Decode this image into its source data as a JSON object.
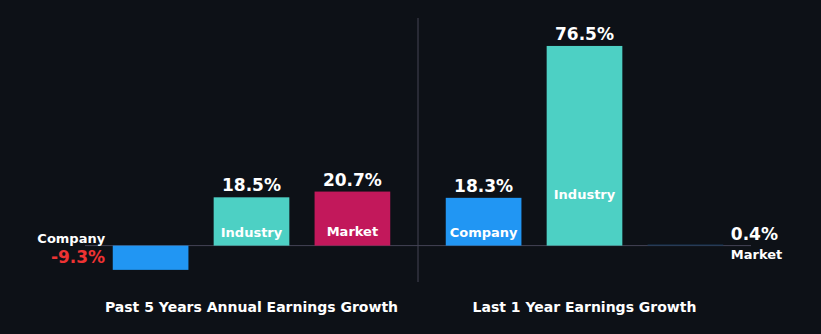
{
  "chart_data": [
    {
      "type": "bar",
      "title": "Past 5 Years Annual Earnings Growth",
      "categories": [
        "Company",
        "Industry",
        "Market"
      ],
      "values": [
        -9.3,
        18.5,
        20.7
      ],
      "value_labels": [
        "-9.3%",
        "18.5%",
        "20.7%"
      ],
      "colors": [
        "#2196f3",
        "#4dd0c4",
        "#c2185b"
      ],
      "ylim": [
        -13.95,
        87.21
      ],
      "data_labels": true,
      "tick_labels": false,
      "grid": false
    },
    {
      "type": "bar",
      "title": "Last 1 Year Earnings Growth",
      "categories": [
        "Company",
        "Industry",
        "Market"
      ],
      "values": [
        18.3,
        76.5,
        0.4
      ],
      "value_labels": [
        "18.3%",
        "76.5%",
        "0.4%"
      ],
      "colors": [
        "#2196f3",
        "#4dd0c4",
        "#1a3a5c"
      ],
      "ylim": [
        -13.95,
        87.21
      ],
      "data_labels": true,
      "tick_labels": false,
      "grid": false
    }
  ]
}
